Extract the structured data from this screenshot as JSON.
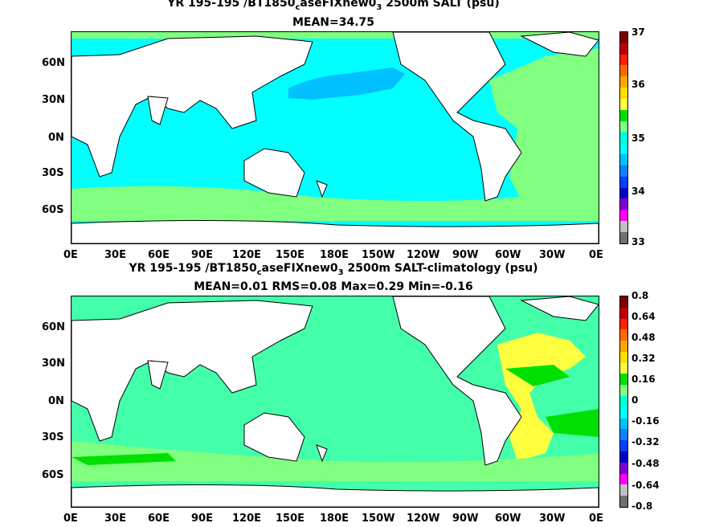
{
  "panels": [
    {
      "title_prefix": "YR 195-195 /BT1850",
      "title_sub1": "c",
      "title_mid": "aseFIXnew0",
      "title_sub2": "3",
      "title_suffix": " 2500m SALT (psu)",
      "stats": "MEAN=34.75",
      "colorbar_ticks": [
        "37",
        "36",
        "35",
        "34",
        "33"
      ],
      "colorbar_colors": [
        "#7f0000",
        "#c00000",
        "#ff2000",
        "#ff6a00",
        "#ffa500",
        "#ffe000",
        "#ffff40",
        "#00e000",
        "#80ff80",
        "#00ffdd",
        "#00ffff",
        "#00c0ff",
        "#1080ff",
        "#0040ff",
        "#0000c0",
        "#8000d0",
        "#ff00ff",
        "#c0c0c0",
        "#707070"
      ],
      "fill_colors": {
        "ocean": "#00ffff",
        "north_pacific": "#00c0ff",
        "atlantic": "#80ff80",
        "southern": "#80ff80"
      }
    },
    {
      "title_prefix": "YR 195-195 /BT1850",
      "title_sub1": "c",
      "title_mid": "aseFIXnew0",
      "title_sub2": "3",
      "title_suffix": " 2500m SALT-climatology (psu)",
      "stats": "MEAN=0.01   RMS=0.08   Max=0.29   Min=-0.16",
      "colorbar_ticks": [
        "0.8",
        "0.64",
        "0.48",
        "0.32",
        "0.16",
        "0",
        "-0.16",
        "-0.32",
        "-0.48",
        "-0.64",
        "-0.8"
      ],
      "colorbar_colors": [
        "#7f0000",
        "#c00000",
        "#ff2000",
        "#ff6a00",
        "#ffa500",
        "#ffe000",
        "#ffff40",
        "#00e000",
        "#80ff80",
        "#00ffdd",
        "#00ffff",
        "#00c0ff",
        "#1080ff",
        "#0040ff",
        "#0000c0",
        "#8000d0",
        "#ff00ff",
        "#c0c0c0",
        "#707070"
      ],
      "fill_colors": {
        "ocean": "#44ffaa",
        "atlantic_high": "#ffff40",
        "atlantic_mid": "#00e000",
        "southern": "#80ff80"
      }
    }
  ],
  "axes": {
    "lat_ticks": [
      "60N",
      "30N",
      "0N",
      "30S",
      "60S"
    ],
    "lon_ticks": [
      "0E",
      "30E",
      "60E",
      "90E",
      "120E",
      "150E",
      "180E",
      "150W",
      "120W",
      "90W",
      "60W",
      "30W",
      "0E"
    ]
  }
}
